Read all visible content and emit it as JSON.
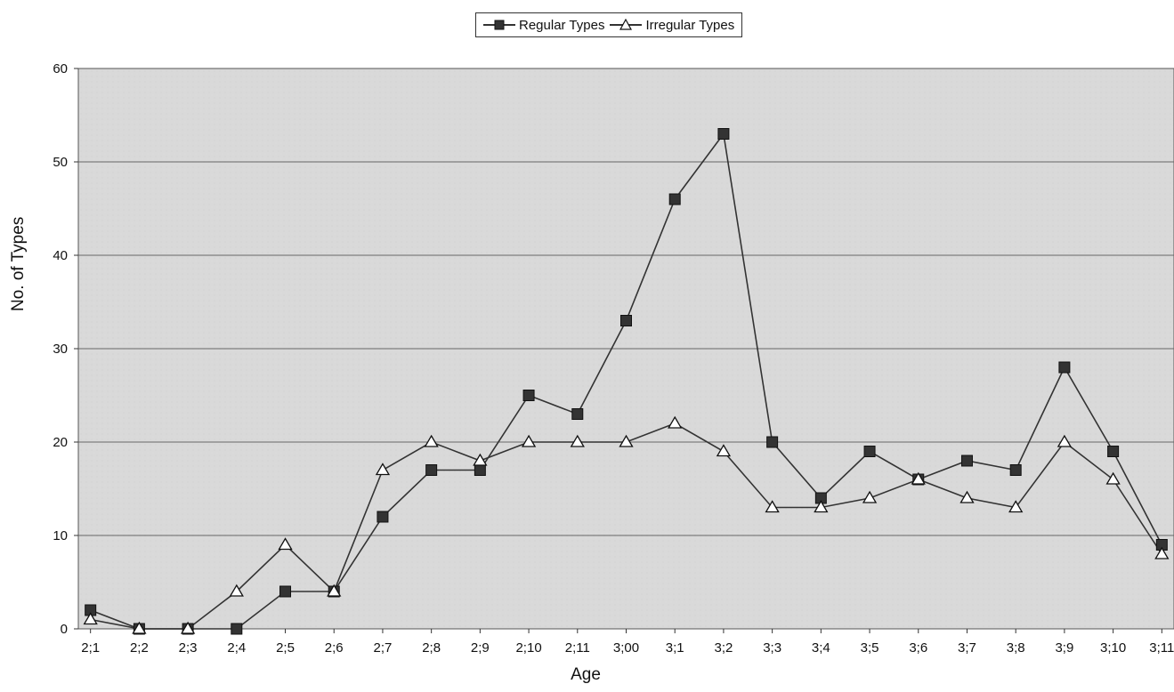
{
  "chart_data": {
    "type": "line",
    "xlabel": "Age",
    "ylabel": "No. of Types",
    "ylim": [
      0,
      60
    ],
    "yticks": [
      0,
      10,
      20,
      30,
      40,
      50,
      60
    ],
    "grid": true,
    "legend_position": "top-center",
    "categories": [
      "2;1",
      "2;2",
      "2;3",
      "2;4",
      "2;5",
      "2;6",
      "2;7",
      "2;8",
      "2;9",
      "2;10",
      "2;11",
      "3;00",
      "3;1",
      "3;2",
      "3;3",
      "3;4",
      "3;5",
      "3;6",
      "3;7",
      "3;8",
      "3;9",
      "3;10",
      "3;11"
    ],
    "series": [
      {
        "name": "Regular Types",
        "marker": "filled-square",
        "color": "#333333",
        "values": [
          2,
          0,
          0,
          0,
          4,
          4,
          12,
          17,
          17,
          25,
          23,
          33,
          46,
          53,
          20,
          14,
          19,
          16,
          18,
          17,
          28,
          19,
          9
        ]
      },
      {
        "name": "Irregular Types",
        "marker": "open-triangle",
        "color": "#333333",
        "values": [
          1,
          0,
          0,
          4,
          9,
          4,
          17,
          20,
          18,
          20,
          20,
          20,
          22,
          19,
          13,
          13,
          14,
          16,
          14,
          13,
          20,
          16,
          8
        ]
      }
    ]
  }
}
